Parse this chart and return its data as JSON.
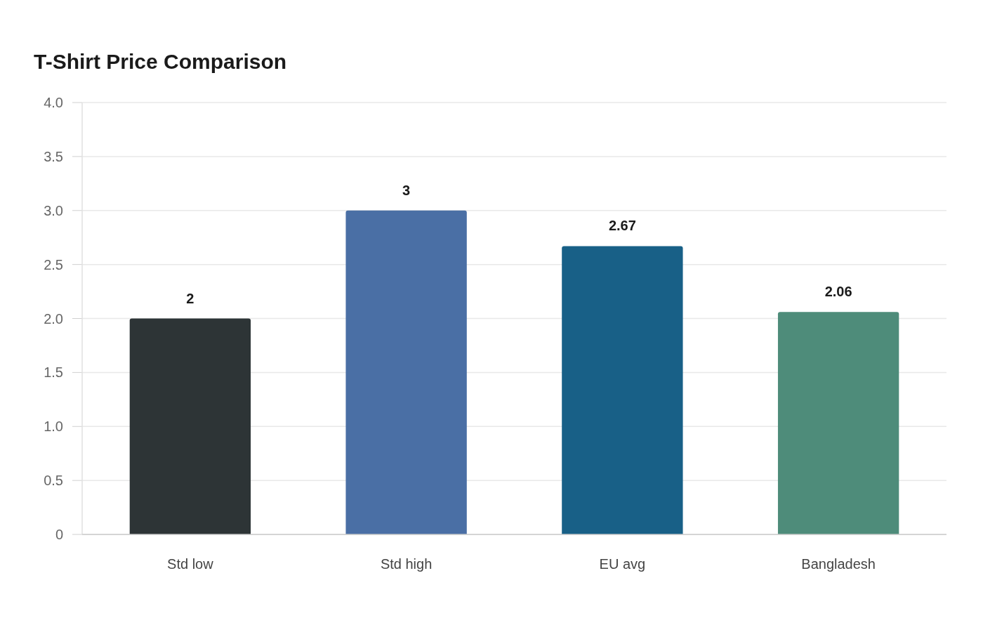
{
  "chart_data": {
    "type": "bar",
    "title": "T-Shirt Price Comparison",
    "categories": [
      "Std low",
      "Std high",
      "EU avg",
      "Bangladesh"
    ],
    "values": [
      2,
      3,
      2.67,
      2.06
    ],
    "colors": [
      "#2d3436",
      "#4a6fa5",
      "#186087",
      "#4e8c7a"
    ],
    "ylim": [
      0,
      4
    ],
    "yticks": [
      0,
      {
        "value": 0.5,
        "label": "0.5"
      },
      {
        "value": 1,
        "label": "1.0"
      },
      {
        "value": 1.5,
        "label": "1.5"
      },
      {
        "value": 2,
        "label": "2.0"
      },
      {
        "value": 2.5,
        "label": "2.5"
      },
      {
        "value": 3,
        "label": "3.0"
      },
      {
        "value": 3.5,
        "label": "3.5"
      },
      {
        "value": 4,
        "label": "4.0"
      }
    ],
    "grid": "y",
    "data_labels": true
  }
}
